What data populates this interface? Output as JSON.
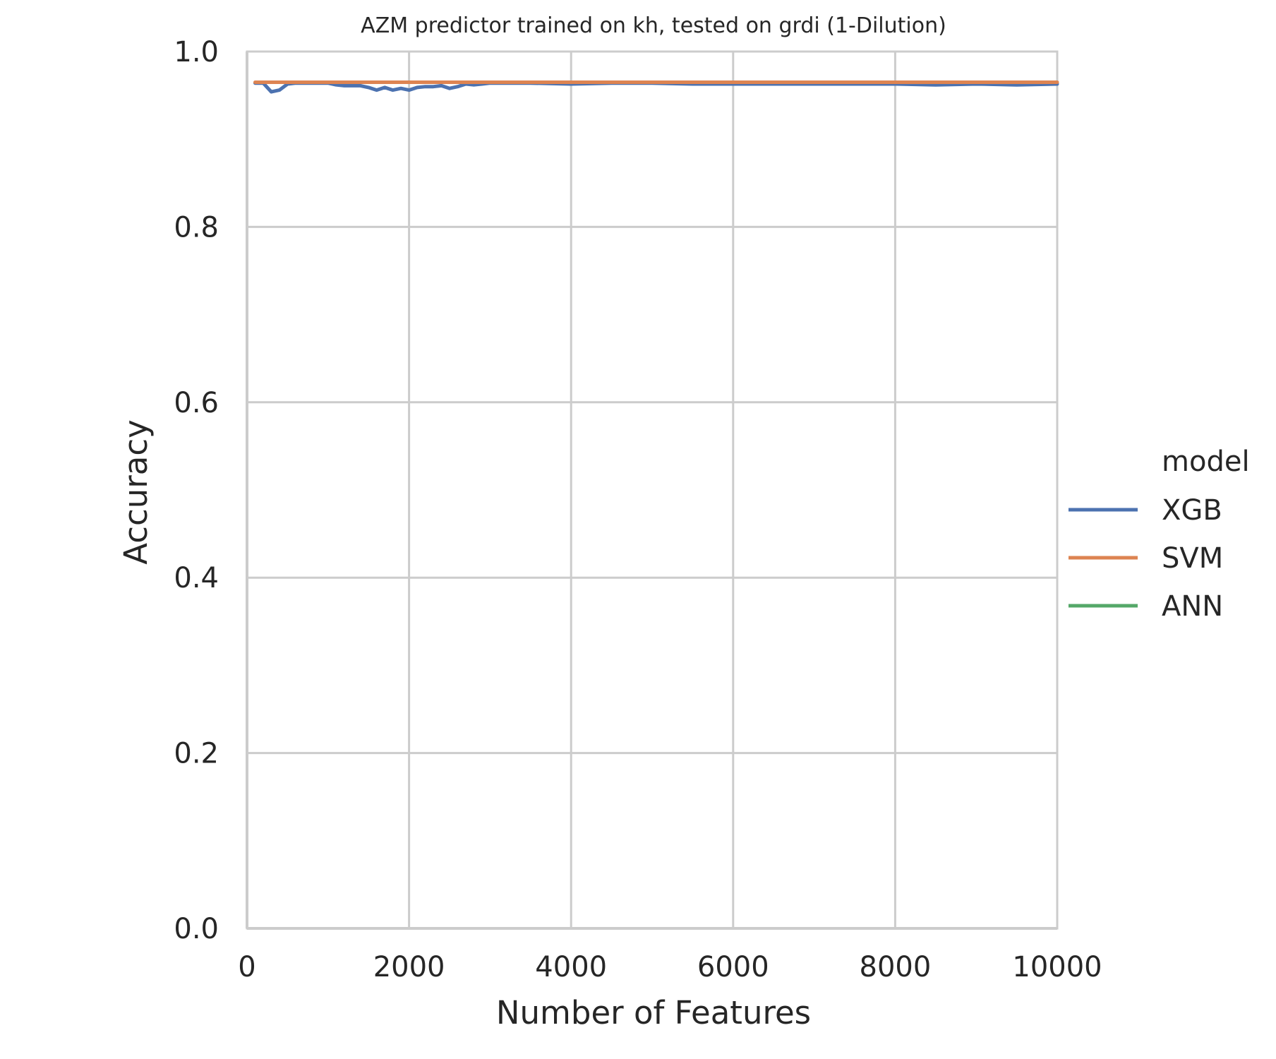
{
  "chart_data": {
    "type": "line",
    "title": "AZM predictor trained on kh, tested on grdi (1-Dilution)",
    "xlabel": "Number of Features",
    "ylabel": "Accuracy",
    "xlim": [
      0,
      10000
    ],
    "ylim": [
      0.0,
      1.0
    ],
    "xticks": [
      0,
      2000,
      4000,
      6000,
      8000,
      10000
    ],
    "xtick_labels": [
      "0",
      "2000",
      "4000",
      "6000",
      "8000",
      "10000"
    ],
    "yticks": [
      0.0,
      0.2,
      0.4,
      0.6,
      0.8,
      1.0
    ],
    "ytick_labels": [
      "0.0",
      "0.2",
      "0.4",
      "0.6",
      "0.8",
      "1.0"
    ],
    "grid": true,
    "legend": {
      "title": "model",
      "position": "right"
    },
    "series": [
      {
        "name": "XGB",
        "color": "#4c72b0",
        "x": [
          100,
          200,
          300,
          400,
          500,
          600,
          700,
          800,
          900,
          1000,
          1100,
          1200,
          1300,
          1400,
          1500,
          1600,
          1700,
          1800,
          1900,
          2000,
          2100,
          2200,
          2300,
          2400,
          2500,
          2600,
          2700,
          2800,
          2900,
          3000,
          3500,
          4000,
          4500,
          5000,
          5500,
          6000,
          6500,
          7000,
          7500,
          8000,
          8500,
          9000,
          9500,
          10000
        ],
        "y": [
          0.964,
          0.964,
          0.954,
          0.956,
          0.963,
          0.964,
          0.964,
          0.964,
          0.964,
          0.964,
          0.962,
          0.961,
          0.961,
          0.961,
          0.959,
          0.956,
          0.959,
          0.956,
          0.958,
          0.956,
          0.959,
          0.96,
          0.96,
          0.961,
          0.958,
          0.96,
          0.963,
          0.962,
          0.963,
          0.964,
          0.964,
          0.963,
          0.964,
          0.964,
          0.963,
          0.963,
          0.963,
          0.963,
          0.963,
          0.963,
          0.962,
          0.963,
          0.962,
          0.963
        ]
      },
      {
        "name": "SVM",
        "color": "#dd8452",
        "x": [
          100,
          10000
        ],
        "y": [
          0.965,
          0.965
        ]
      },
      {
        "name": "ANN",
        "color": "#55a868",
        "x": [],
        "y": []
      }
    ]
  }
}
